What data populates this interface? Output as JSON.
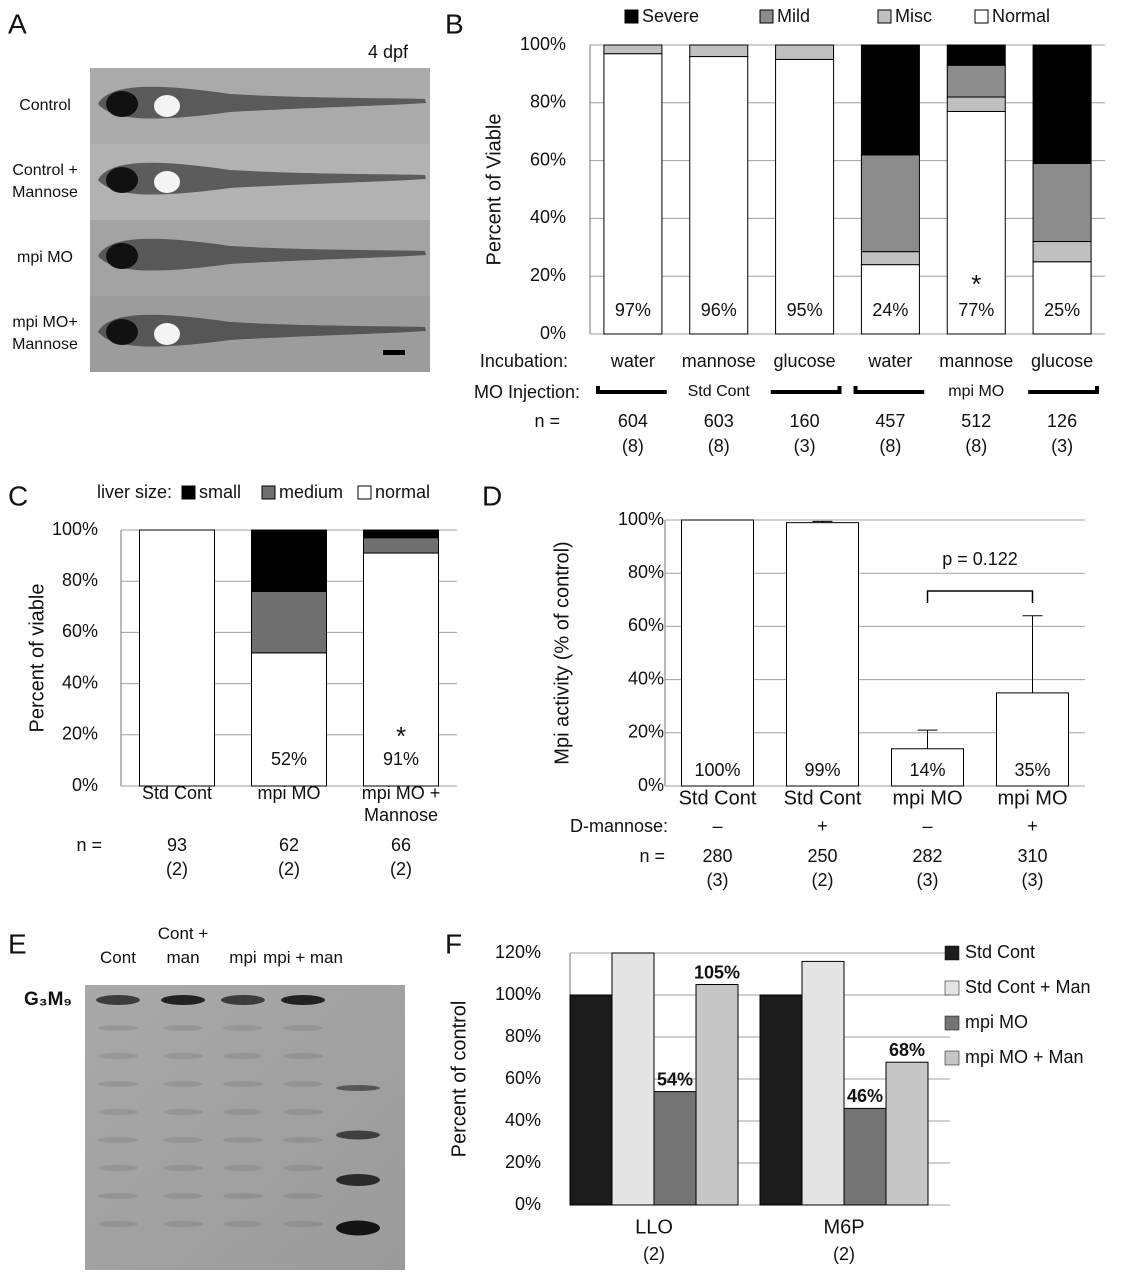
{
  "panel_letters": [
    "A",
    "B",
    "C",
    "D",
    "E",
    "F"
  ],
  "panel_a": {
    "stage": "4 dpf",
    "rows": [
      "Control",
      "Control + Mannose",
      "mpi MO",
      "mpi MO+ Mannose"
    ]
  },
  "panel_e": {
    "lanes": [
      "Cont",
      "Cont + man",
      "mpi",
      "mpi + man"
    ],
    "band_label": "G₃M₉"
  },
  "chart_data": [
    {
      "type": "stacked_bar",
      "y_label": "Percent of Viable",
      "legend": "top",
      "categories": [
        "water",
        "mannose",
        "glucose",
        "water",
        "mannose",
        "glucose"
      ],
      "row_label": "Incubation:",
      "group_row_label": "MO Injection:",
      "groups": [
        "Std Cont",
        "mpi MO"
      ],
      "n_label": "n =",
      "n": [
        604,
        603,
        160,
        457,
        512,
        126
      ],
      "n_sub": [
        "(8)",
        "(8)",
        "(3)",
        "(8)",
        "(8)",
        "(3)"
      ],
      "annotation": "*",
      "series": [
        {
          "name": "Severe",
          "color": "#000000",
          "values": [
            0,
            0,
            0,
            38,
            7,
            41
          ]
        },
        {
          "name": "Mild",
          "color": "#8c8c8c",
          "values": [
            0,
            0,
            0,
            33.5,
            11,
            27
          ]
        },
        {
          "name": "Misc",
          "color": "#c0c0c0",
          "values": [
            3,
            4,
            5,
            4.5,
            5,
            7
          ]
        },
        {
          "name": "Normal",
          "color": "#ffffff",
          "values": [
            97,
            96,
            95,
            24,
            77,
            25
          ],
          "value_labels": [
            "97%",
            "96%",
            "95%",
            "24%",
            "77%",
            "25%"
          ]
        }
      ],
      "ylim": [
        0,
        100
      ],
      "yticks": [
        {
          "value": 0,
          "label": "0%"
        },
        {
          "value": 20,
          "label": "20%"
        },
        {
          "value": 40,
          "label": "40%"
        },
        {
          "value": 60,
          "label": "60%"
        },
        {
          "value": 80,
          "label": "80%"
        },
        {
          "value": 100,
          "label": "100%"
        }
      ],
      "grid": true
    },
    {
      "type": "stacked_bar",
      "y_label": "Percent of viable",
      "legend": "top",
      "legend_title": "liver size:",
      "categories": [
        "Std Cont",
        "mpi MO",
        "mpi MO + Mannose"
      ],
      "n_label": "n =",
      "n": [
        93,
        62,
        66
      ],
      "n_sub": [
        "(2)",
        "(2)",
        "(2)"
      ],
      "annotation": "*",
      "series": [
        {
          "name": "small",
          "color": "#000000",
          "values": [
            0,
            24,
            3
          ]
        },
        {
          "name": "medium",
          "color": "#707070",
          "values": [
            0,
            24,
            6
          ]
        },
        {
          "name": "normal",
          "color": "#ffffff",
          "values": [
            100,
            52,
            91
          ],
          "value_labels": [
            null,
            "52%",
            "91%"
          ]
        }
      ],
      "ylim": [
        0,
        100
      ],
      "yticks": [
        {
          "value": 0,
          "label": "0%"
        },
        {
          "value": 20,
          "label": "20%"
        },
        {
          "value": 40,
          "label": "40%"
        },
        {
          "value": 60,
          "label": "60%"
        },
        {
          "value": 80,
          "label": "80%"
        },
        {
          "value": 100,
          "label": "100%"
        }
      ],
      "grid": true
    },
    {
      "type": "bar",
      "y_label": "Mpi activity (% of control)",
      "color": "#ffffff",
      "categories": [
        "Std Cont",
        "Std Cont",
        "mpi MO",
        "mpi MO"
      ],
      "values": [
        100,
        99,
        14,
        35
      ],
      "errors": [
        0,
        0.5,
        7,
        29
      ],
      "value_labels": [
        "100%",
        "99%",
        "14%",
        "35%"
      ],
      "row_label": "D-mannose:",
      "row": [
        "–",
        "+",
        "–",
        "+"
      ],
      "n_label": "n =",
      "n": [
        280,
        250,
        282,
        310
      ],
      "n_sub": [
        "(3)",
        "(2)",
        "(3)",
        "(3)"
      ],
      "annotation": "p = 0.122",
      "ylim": [
        0,
        100
      ],
      "yticks": [
        {
          "value": 0,
          "label": "0%"
        },
        {
          "value": 20,
          "label": "20%"
        },
        {
          "value": 40,
          "label": "40%"
        },
        {
          "value": 60,
          "label": "60%"
        },
        {
          "value": 80,
          "label": "80%"
        },
        {
          "value": 100,
          "label": "100%"
        }
      ],
      "grid": true
    },
    {
      "type": "grouped_bar",
      "y_label": "Percent of control",
      "legend": "right",
      "categories": [
        "LLO",
        "M6P"
      ],
      "category_sub": [
        "(2)",
        "(2)"
      ],
      "series": [
        {
          "name": "Std Cont",
          "color": "#1c1c1c",
          "values": [
            100,
            100
          ]
        },
        {
          "name": "Std Cont + Man",
          "color": "#e4e4e4",
          "values": [
            120,
            116
          ]
        },
        {
          "name": "mpi MO",
          "color": "#747474",
          "values": [
            54,
            46
          ],
          "value_labels": [
            "54%",
            "46%"
          ]
        },
        {
          "name": "mpi MO + Man",
          "color": "#c6c6c6",
          "values": [
            105,
            68
          ],
          "value_labels": [
            "105%",
            "68%"
          ]
        }
      ],
      "ylim": [
        0,
        120
      ],
      "yticks": [
        {
          "value": 0,
          "label": "0%"
        },
        {
          "value": 20,
          "label": "20%"
        },
        {
          "value": 40,
          "label": "40%"
        },
        {
          "value": 60,
          "label": "60%"
        },
        {
          "value": 80,
          "label": "80%"
        },
        {
          "value": 100,
          "label": "100%"
        },
        {
          "value": 120,
          "label": "120%"
        }
      ],
      "grid": true
    }
  ]
}
